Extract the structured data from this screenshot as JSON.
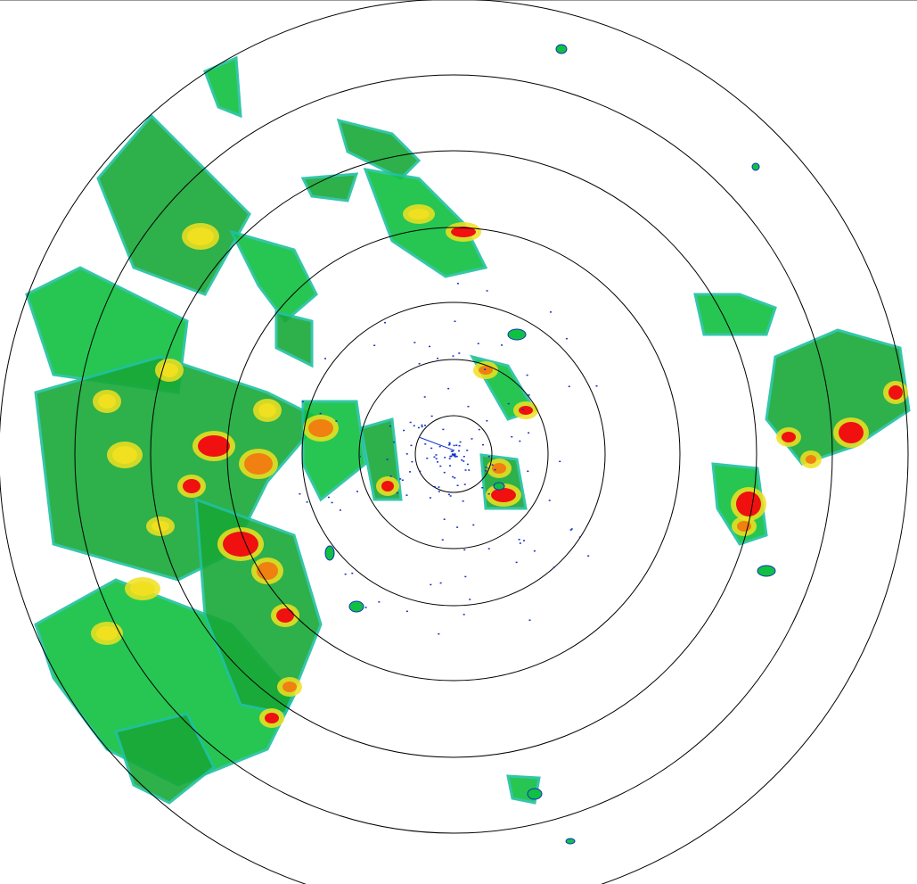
{
  "palette": {
    "weak": "#1030c8",
    "light": "#20c0a0",
    "moderate": "#10c040",
    "moderate_dark": "#18a838",
    "heavy": "#f0e020",
    "intense": "#f08010",
    "extreme": "#f01010"
  },
  "range_ring_color": "#000000"
}
